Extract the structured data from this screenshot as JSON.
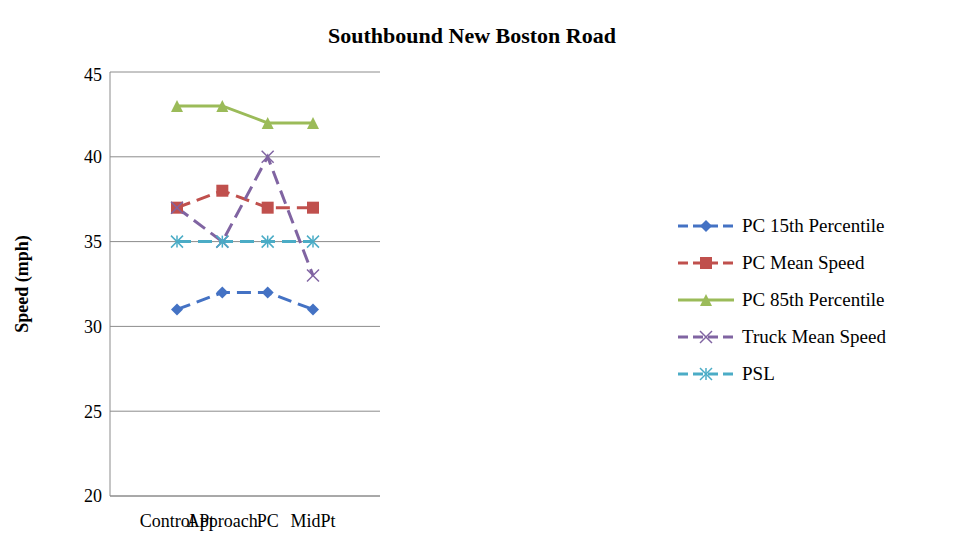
{
  "chart_data": {
    "type": "line",
    "title": "Southbound New Boston Road",
    "y_label": "Speed (mph)",
    "categories": [
      "Control Pt",
      "Approach",
      "PC",
      "MidPt"
    ],
    "series": [
      {
        "name": "PC 15th Percentile",
        "color": "#4472c4",
        "marker": "diamond",
        "line_style": "dashed",
        "values": [
          31,
          32,
          32,
          31
        ]
      },
      {
        "name": "PC Mean Speed",
        "color": "#c0504d",
        "marker": "square",
        "line_style": "dashed",
        "values": [
          37,
          38,
          37,
          37
        ]
      },
      {
        "name": "PC 85th Percentile",
        "color": "#9bbb59",
        "marker": "triangle",
        "line_style": "solid",
        "values": [
          43,
          43,
          42,
          42
        ]
      },
      {
        "name": "Truck Mean Speed",
        "color": "#8064a2",
        "marker": "x",
        "line_style": "dashed",
        "values": [
          37,
          35,
          40,
          33
        ]
      },
      {
        "name": "PSL",
        "color": "#4bacc6",
        "marker": "star",
        "line_style": "dashed",
        "values": [
          35,
          35,
          35,
          35
        ]
      }
    ],
    "ylim": [
      20,
      45
    ],
    "yticks": [
      20,
      25,
      30,
      35,
      40,
      45
    ],
    "grid": true,
    "legend": "right"
  }
}
